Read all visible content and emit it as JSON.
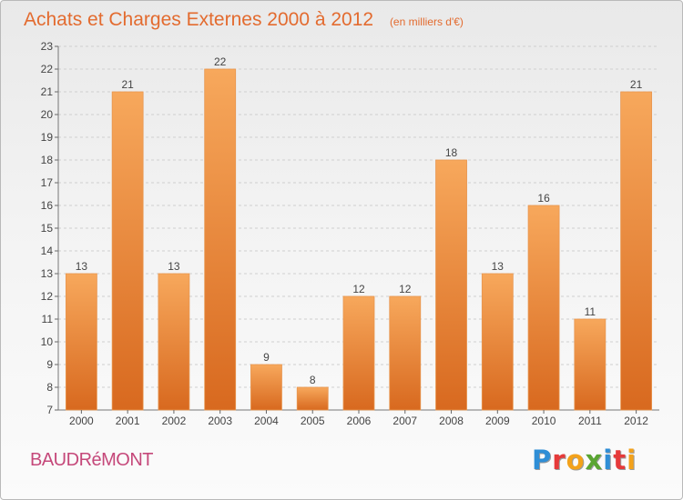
{
  "title": "Achats et Charges Externes 2000 à 2012",
  "subtitle": "(en milliers d'€)",
  "commune": "BAUDRéMONT",
  "logo": {
    "letters": [
      "P",
      "r",
      "o",
      "x",
      "i",
      "t",
      "i"
    ],
    "colors": [
      "#2f8ed6",
      "#e63a3a",
      "#f3a21b",
      "#5aa532",
      "#2f8ed6",
      "#e63a3a",
      "#f3a21b"
    ]
  },
  "colors": {
    "bar_light": "#f7a85c",
    "bar_dark": "#d8691f",
    "title": "#e36b2f",
    "commune": "#c5487a",
    "grid": "#cfcfcf"
  },
  "chart_data": {
    "type": "bar",
    "title": "Achats et Charges Externes 2000 à 2012",
    "subtitle": "(en milliers d'€)",
    "categories": [
      "2000",
      "2001",
      "2002",
      "2003",
      "2004",
      "2005",
      "2006",
      "2007",
      "2008",
      "2009",
      "2010",
      "2011",
      "2012"
    ],
    "values": [
      13,
      21,
      13,
      22,
      9,
      8,
      12,
      12,
      18,
      13,
      16,
      11,
      21
    ],
    "ylim": [
      7,
      23
    ],
    "yticks": [
      7,
      8,
      9,
      10,
      11,
      12,
      13,
      14,
      15,
      16,
      17,
      18,
      19,
      20,
      21,
      22,
      23
    ],
    "grid": true,
    "xlabel": "",
    "ylabel": ""
  }
}
